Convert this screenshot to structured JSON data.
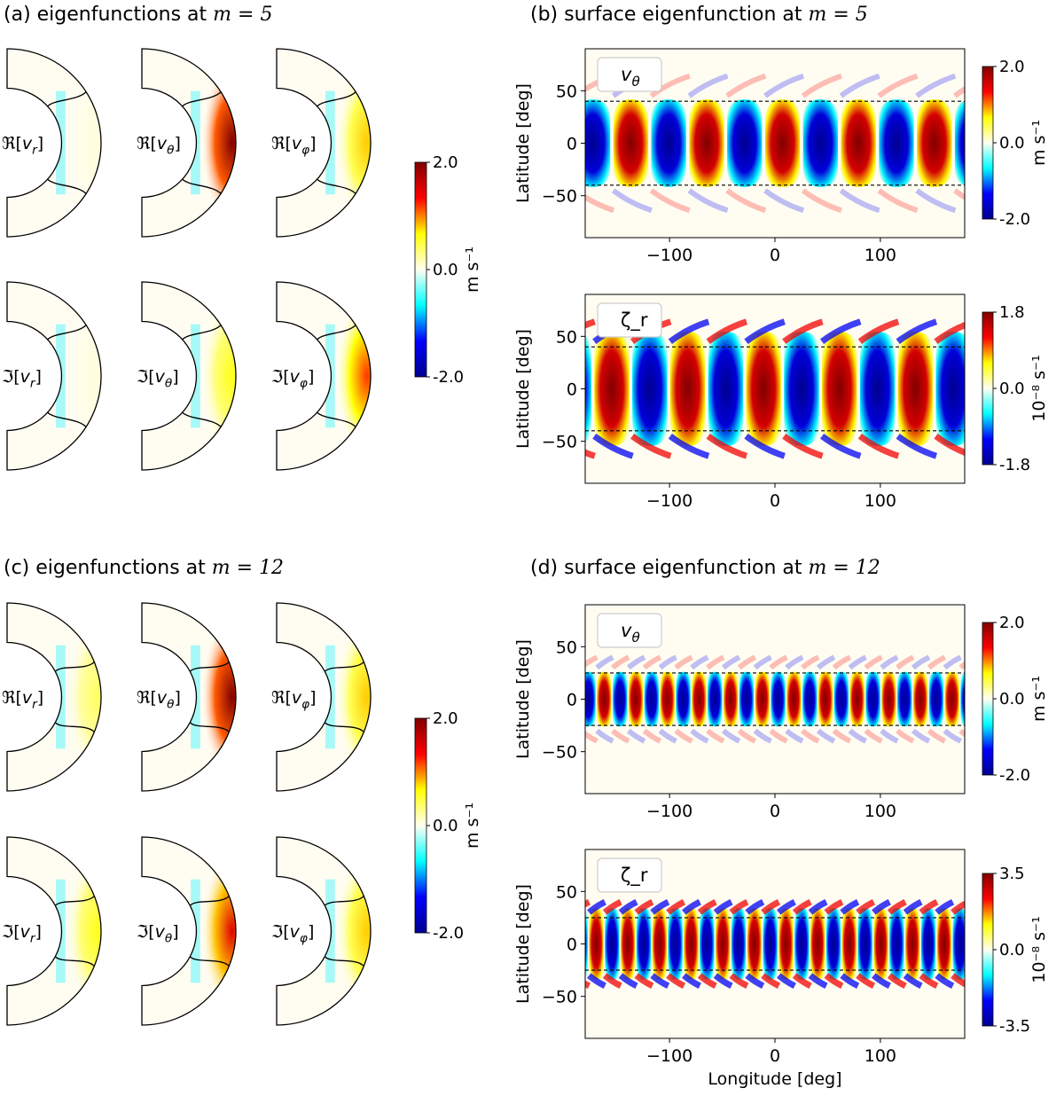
{
  "colors": {
    "colormap": [
      "#00008f",
      "#0000ff",
      "#00ffff",
      "#fffef0",
      "#ffff00",
      "#ff0000",
      "#800000"
    ],
    "background": "#fffdf2",
    "shell_outline": "#000000",
    "boundary_line": "#000000"
  },
  "panels": {
    "a": {
      "title_prefix": "(a) eigenfunctions at ",
      "title_math": "m = 5"
    },
    "b": {
      "title_prefix": "(b) surface eigenfunction at ",
      "title_math": "m = 5"
    },
    "c": {
      "title_prefix": "(c) eigenfunctions at ",
      "title_math": "m = 12"
    },
    "d": {
      "title_prefix": "(d) surface eigenfunction at ",
      "title_math": "m = 12"
    }
  },
  "chart_data": [
    {
      "type": "heatmap",
      "panel": "a",
      "subplots": [
        {
          "label": "ℜ[v_r]",
          "peak": 0.05
        },
        {
          "label": "ℜ[v_θ]",
          "peak": 2.0
        },
        {
          "label": "ℜ[v_φ]",
          "peak": 0.8
        },
        {
          "label": "ℑ[v_r]",
          "peak": 0.05
        },
        {
          "label": "ℑ[v_θ]",
          "peak": 0.6
        },
        {
          "label": "ℑ[v_φ]",
          "peak": 1.2
        }
      ],
      "colorbar": {
        "min": -2.0,
        "max": 2.0,
        "ticks": [
          "2.0",
          "0.0",
          "-2.0"
        ],
        "label": "m s⁻¹"
      }
    },
    {
      "type": "heatmap",
      "panel": "b-top",
      "annotation": "v_θ",
      "x": {
        "label": "",
        "range": [
          -180,
          180
        ],
        "ticks": [
          -100,
          0,
          100
        ]
      },
      "y": {
        "label": "Latitude [deg]",
        "range": [
          -90,
          90
        ],
        "ticks": [
          50,
          0,
          -50
        ]
      },
      "boundaries_lat": [
        40,
        -40
      ],
      "m": 5,
      "colorbar": {
        "min": -2.0,
        "max": 2.0,
        "ticks": [
          "2.0",
          "0.0",
          "-2.0"
        ],
        "label": "m s⁻¹"
      }
    },
    {
      "type": "heatmap",
      "panel": "b-bottom",
      "annotation": "ζ_r",
      "x": {
        "label": "",
        "range": [
          -180,
          180
        ],
        "ticks": [
          -100,
          0,
          100
        ]
      },
      "y": {
        "label": "Latitude [deg]",
        "range": [
          -90,
          90
        ],
        "ticks": [
          50,
          0,
          -50
        ]
      },
      "boundaries_lat": [
        40,
        -40
      ],
      "m": 5,
      "colorbar": {
        "min": -1.8,
        "max": 1.8,
        "ticks": [
          "1.8",
          "0.0",
          "-1.8"
        ],
        "label": "10⁻⁸ s⁻¹"
      }
    },
    {
      "type": "heatmap",
      "panel": "c",
      "subplots": [
        {
          "label": "ℜ[v_r]",
          "peak": 0.4
        },
        {
          "label": "ℜ[v_θ]",
          "peak": 2.0
        },
        {
          "label": "ℜ[v_φ]",
          "peak": 0.8
        },
        {
          "label": "ℑ[v_r]",
          "peak": 0.6
        },
        {
          "label": "ℑ[v_θ]",
          "peak": 1.5
        },
        {
          "label": "ℑ[v_φ]",
          "peak": 0.8
        }
      ],
      "colorbar": {
        "min": -2.0,
        "max": 2.0,
        "ticks": [
          "2.0",
          "0.0",
          "-2.0"
        ],
        "label": "m s⁻¹"
      }
    },
    {
      "type": "heatmap",
      "panel": "d-top",
      "annotation": "v_θ",
      "x": {
        "label": "",
        "range": [
          -180,
          180
        ],
        "ticks": [
          -100,
          0,
          100
        ]
      },
      "y": {
        "label": "Latitude [deg]",
        "range": [
          -90,
          90
        ],
        "ticks": [
          50,
          0,
          -50
        ]
      },
      "boundaries_lat": [
        25,
        -25
      ],
      "m": 12,
      "colorbar": {
        "min": -2.0,
        "max": 2.0,
        "ticks": [
          "2.0",
          "0.0",
          "-2.0"
        ],
        "label": "m s⁻¹"
      }
    },
    {
      "type": "heatmap",
      "panel": "d-bottom",
      "annotation": "ζ_r",
      "x": {
        "label": "Longitude [deg]",
        "range": [
          -180,
          180
        ],
        "ticks": [
          -100,
          0,
          100
        ]
      },
      "y": {
        "label": "Latitude [deg]",
        "range": [
          -90,
          90
        ],
        "ticks": [
          50,
          0,
          -50
        ]
      },
      "boundaries_lat": [
        25,
        -25
      ],
      "m": 12,
      "colorbar": {
        "min": -3.5,
        "max": 3.5,
        "ticks": [
          "3.5",
          "0.0",
          "-3.5"
        ],
        "label": "10⁻⁸ s⁻¹"
      }
    }
  ]
}
